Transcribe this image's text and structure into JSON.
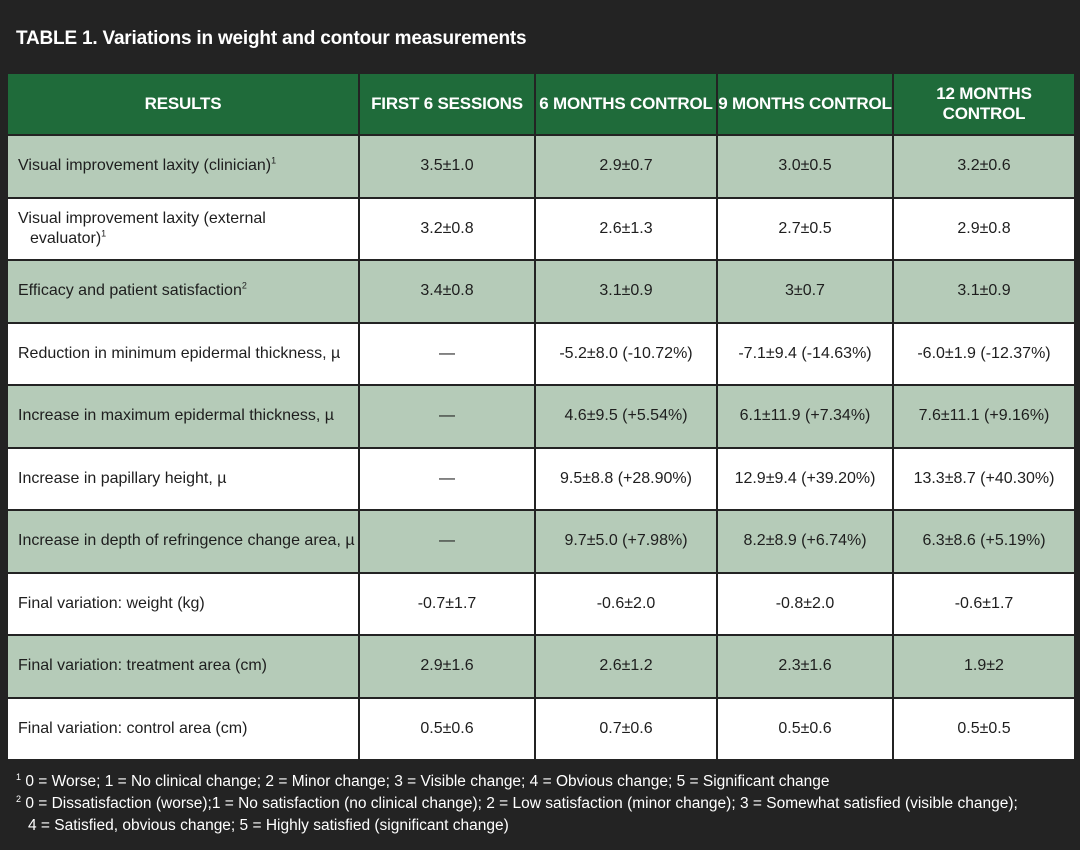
{
  "title": "TABLE 1. Variations in weight and contour measurements",
  "headers": [
    "RESULTS",
    "FIRST 6 SESSIONS",
    "6 MONTHS CONTROL",
    "9 MONTHS CONTROL",
    "12 MONTHS CONTROL"
  ],
  "rows": [
    {
      "label": "Visual improvement laxity (clinician)",
      "sup": "1",
      "cont": "",
      "values": [
        "3.5±1.0",
        "2.9±0.7",
        "3.0±0.5",
        "3.2±0.6"
      ]
    },
    {
      "label": "Visual improvement laxity (external",
      "sup": "1",
      "cont": "evaluator)",
      "values": [
        "3.2±0.8",
        "2.6±1.3",
        "2.7±0.5",
        "2.9±0.8"
      ]
    },
    {
      "label": "Efficacy and patient satisfaction",
      "sup": "2",
      "cont": "",
      "values": [
        "3.4±0.8",
        "3.1±0.9",
        "3±0.7",
        "3.1±0.9"
      ]
    },
    {
      "label": "Reduction in minimum epidermal thickness, µ",
      "sup": "",
      "cont": "",
      "values": [
        "—",
        "-5.2±8.0 (-10.72%)",
        "-7.1±9.4 (-14.63%)",
        "-6.0±1.9 (-12.37%)"
      ]
    },
    {
      "label": "Increase in maximum epidermal thickness, µ",
      "sup": "",
      "cont": "",
      "values": [
        "—",
        "4.6±9.5 (+5.54%)",
        "6.1±11.9 (+7.34%)",
        "7.6±11.1 (+9.16%)"
      ]
    },
    {
      "label": "Increase in papillary height, µ",
      "sup": "",
      "cont": "",
      "values": [
        "—",
        "9.5±8.8 (+28.90%)",
        "12.9±9.4 (+39.20%)",
        "13.3±8.7 (+40.30%)"
      ]
    },
    {
      "label": "Increase in depth of refringence change area, µ",
      "sup": "",
      "cont": "",
      "values": [
        "—",
        "9.7±5.0 (+7.98%)",
        "8.2±8.9 (+6.74%)",
        "6.3±8.6 (+5.19%)"
      ]
    },
    {
      "label": "Final variation: weight (kg)",
      "sup": "",
      "cont": "",
      "values": [
        "-0.7±1.7",
        "-0.6±2.0",
        "-0.8±2.0",
        "-0.6±1.7"
      ]
    },
    {
      "label": "Final variation: treatment area (cm)",
      "sup": "",
      "cont": "",
      "values": [
        "2.9±1.6",
        "2.6±1.2",
        "2.3±1.6",
        "1.9±2"
      ]
    },
    {
      "label": "Final variation: control area (cm)",
      "sup": "",
      "cont": "",
      "values": [
        "0.5±0.6",
        "0.7±0.6",
        "0.5±0.6",
        "0.5±0.5"
      ]
    }
  ],
  "footnotes": [
    {
      "sup": "1",
      "text": "0 = Worse; 1 = No clinical change; 2 = Minor change; 3 = Visible change; 4 = Obvious change; 5 = Significant change",
      "cont": ""
    },
    {
      "sup": "2",
      "text": "0 = Dissatisfaction (worse);1 = No satisfaction (no clinical change); 2 = Low satisfaction (minor change); 3 = Somewhat satisfied (visible change);",
      "cont": "4 = Satisfied, obvious change; 5 = Highly satisfied (significant change)"
    }
  ],
  "colors": {
    "frame": "#232323",
    "header": "#1f6b3a",
    "shaded_row": "#b5cbb8",
    "plain_row": "#ffffff"
  }
}
